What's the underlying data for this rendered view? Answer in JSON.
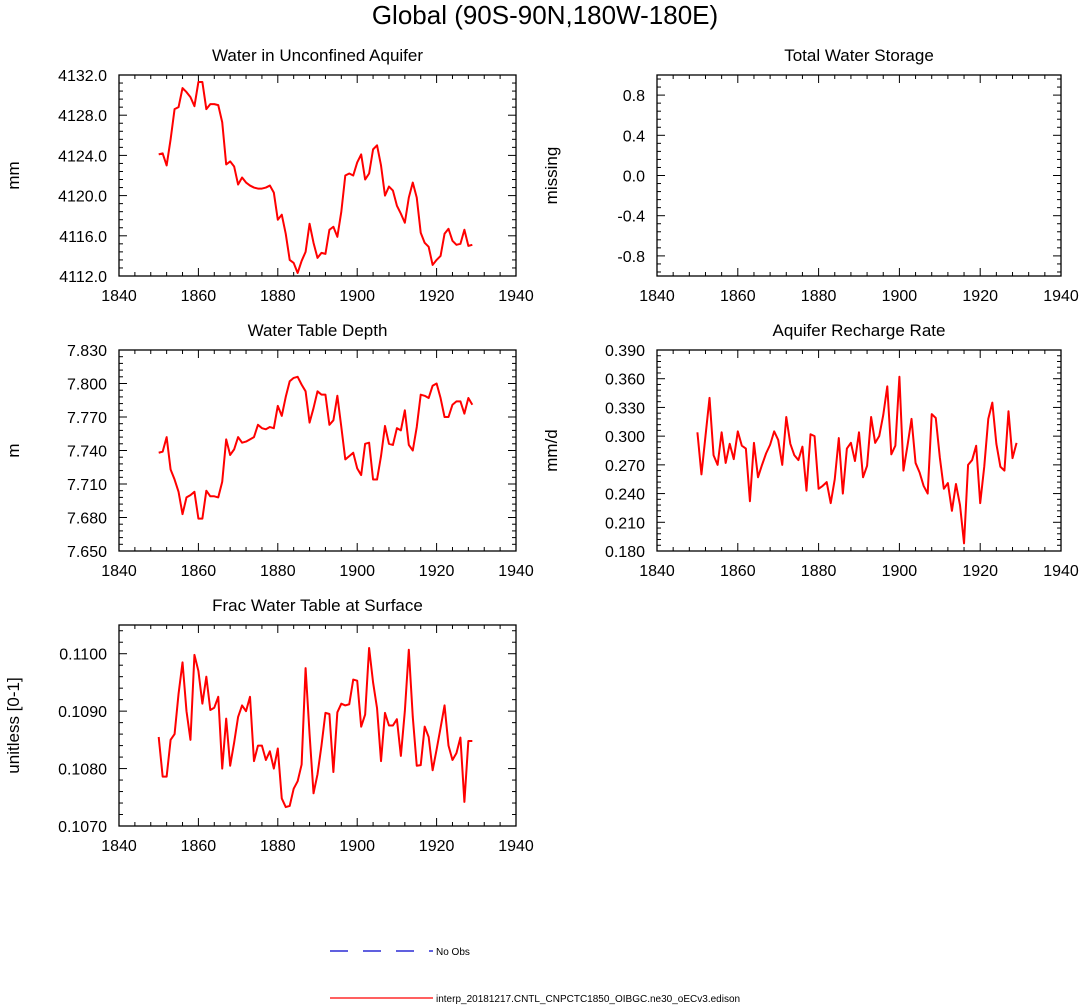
{
  "figure": {
    "title": "Global (90S-90N,180W-180E)"
  },
  "legend": [
    {
      "label": "No Obs",
      "color": "#0000cc",
      "style": "dashed"
    },
    {
      "label": "interp_20181217.CNTL_CNPCTC1850_OIBGC.ne30_oECv3.edison",
      "color": "#ff0000",
      "style": "solid"
    }
  ],
  "chart_data": [
    {
      "type": "line",
      "title": "Water in Unconfined Aquifer",
      "xlabel": "",
      "ylabel": "mm",
      "xlim": [
        1840,
        1940
      ],
      "ylim": [
        4112.0,
        4132.0
      ],
      "xticks": [
        "1840",
        "1860",
        "1880",
        "1900",
        "1920",
        "1940"
      ],
      "yticks": [
        "4112.0",
        "4116.0",
        "4120.0",
        "4124.0",
        "4128.0",
        "4132.0"
      ],
      "series": [
        {
          "name": "interp_20181217.CNTL_CNPCTC1850_OIBGC.ne30_oECv3.edison",
          "color": "#ff0000",
          "x": [
            1850,
            1851,
            1852,
            1853,
            1854,
            1855,
            1856,
            1857,
            1858,
            1859,
            1860,
            1861,
            1862,
            1863,
            1864,
            1865,
            1866,
            1867,
            1868,
            1869,
            1870,
            1871,
            1872,
            1873,
            1874,
            1875,
            1876,
            1877,
            1878,
            1879,
            1880,
            1881,
            1882,
            1883,
            1884,
            1885,
            1886,
            1887,
            1888,
            1889,
            1890,
            1891,
            1892,
            1893,
            1894,
            1895,
            1896,
            1897,
            1898,
            1899,
            1900,
            1901,
            1902,
            1903,
            1904,
            1905,
            1906,
            1907,
            1908,
            1909,
            1910,
            1911,
            1912,
            1913,
            1914,
            1915,
            1916,
            1917,
            1918,
            1919,
            1920,
            1921,
            1922,
            1923,
            1924,
            1925,
            1926,
            1927,
            1928,
            1929
          ],
          "y": [
            4124.1,
            4124.2,
            4123.0,
            4125.6,
            4128.6,
            4128.8,
            4130.7,
            4130.3,
            4129.8,
            4128.9,
            4131.3,
            4131.3,
            4128.6,
            4129.1,
            4129.1,
            4129.0,
            4127.3,
            4123.1,
            4123.4,
            4122.9,
            4121.1,
            4121.8,
            4121.3,
            4121.0,
            4120.8,
            4120.7,
            4120.7,
            4120.8,
            4121.0,
            4120.3,
            4117.6,
            4118.1,
            4116.2,
            4113.6,
            4113.3,
            4112.3,
            4113.5,
            4114.4,
            4117.2,
            4115.3,
            4113.8,
            4114.3,
            4114.2,
            4116.6,
            4116.9,
            4115.9,
            4118.4,
            4122.0,
            4122.2,
            4122.0,
            4123.3,
            4124.1,
            4121.6,
            4122.2,
            4124.6,
            4125.0,
            4123.0,
            4120.0,
            4120.9,
            4120.5,
            4119.0,
            4118.2,
            4117.3,
            4119.8,
            4121.3,
            4119.8,
            4116.3,
            4115.3,
            4114.9,
            4113.1,
            4113.6,
            4114.0,
            4116.2,
            4116.7,
            4115.5,
            4115.1,
            4115.2,
            4116.6,
            4115.0,
            4115.1
          ]
        }
      ]
    },
    {
      "type": "line",
      "title": "Total Water Storage",
      "xlabel": "",
      "ylabel": "missing",
      "xlim": [
        1840,
        1940
      ],
      "ylim": [
        -1.0,
        1.0
      ],
      "xticks": [
        "1840",
        "1860",
        "1880",
        "1900",
        "1920",
        "1940"
      ],
      "yticks": [
        "-0.8",
        "-0.4",
        "0.0",
        "0.4",
        "0.8"
      ],
      "series": []
    },
    {
      "type": "line",
      "title": "Water Table Depth",
      "xlabel": "",
      "ylabel": "m",
      "xlim": [
        1840,
        1940
      ],
      "ylim": [
        7.65,
        7.83
      ],
      "xticks": [
        "1840",
        "1860",
        "1880",
        "1900",
        "1920",
        "1940"
      ],
      "yticks": [
        "7.650",
        "7.680",
        "7.710",
        "7.740",
        "7.770",
        "7.800",
        "7.830"
      ],
      "series": [
        {
          "name": "interp_20181217.CNTL_CNPCTC1850_OIBGC.ne30_oECv3.edison",
          "color": "#ff0000",
          "x": [
            1850,
            1851,
            1852,
            1853,
            1854,
            1855,
            1856,
            1857,
            1858,
            1859,
            1860,
            1861,
            1862,
            1863,
            1864,
            1865,
            1866,
            1867,
            1868,
            1869,
            1870,
            1871,
            1872,
            1873,
            1874,
            1875,
            1876,
            1877,
            1878,
            1879,
            1880,
            1881,
            1882,
            1883,
            1884,
            1885,
            1886,
            1887,
            1888,
            1889,
            1890,
            1891,
            1892,
            1893,
            1894,
            1895,
            1896,
            1897,
            1898,
            1899,
            1900,
            1901,
            1902,
            1903,
            1904,
            1905,
            1906,
            1907,
            1908,
            1909,
            1910,
            1911,
            1912,
            1913,
            1914,
            1915,
            1916,
            1917,
            1918,
            1919,
            1920,
            1921,
            1922,
            1923,
            1924,
            1925,
            1926,
            1927,
            1928,
            1929
          ],
          "y": [
            7.738,
            7.739,
            7.752,
            7.723,
            7.714,
            7.703,
            7.683,
            7.698,
            7.7,
            7.703,
            7.679,
            7.679,
            7.704,
            7.699,
            7.699,
            7.698,
            7.712,
            7.75,
            7.736,
            7.741,
            7.752,
            7.747,
            7.748,
            7.75,
            7.752,
            7.763,
            7.76,
            7.759,
            7.761,
            7.76,
            7.78,
            7.771,
            7.788,
            7.802,
            7.805,
            7.806,
            7.799,
            7.793,
            7.765,
            7.778,
            7.793,
            7.79,
            7.79,
            7.763,
            7.767,
            7.789,
            7.761,
            7.732,
            7.735,
            7.738,
            7.724,
            7.718,
            7.746,
            7.747,
            7.714,
            7.714,
            7.735,
            7.762,
            7.746,
            7.745,
            7.76,
            7.758,
            7.776,
            7.745,
            7.74,
            7.761,
            7.79,
            7.789,
            7.787,
            7.798,
            7.8,
            7.787,
            7.77,
            7.77,
            7.781,
            7.784,
            7.784,
            7.773,
            7.787,
            7.781
          ]
        }
      ]
    },
    {
      "type": "line",
      "title": "Aquifer Recharge Rate",
      "xlabel": "",
      "ylabel": "mm/d",
      "xlim": [
        1840,
        1940
      ],
      "ylim": [
        0.18,
        0.39
      ],
      "xticks": [
        "1840",
        "1860",
        "1880",
        "1900",
        "1920",
        "1940"
      ],
      "yticks": [
        "0.180",
        "0.210",
        "0.240",
        "0.270",
        "0.300",
        "0.330",
        "0.360",
        "0.390"
      ],
      "series": [
        {
          "name": "interp_20181217.CNTL_CNPCTC1850_OIBGC.ne30_oECv3.edison",
          "color": "#ff0000",
          "x": [
            1850,
            1851,
            1852,
            1853,
            1854,
            1855,
            1856,
            1857,
            1858,
            1859,
            1860,
            1861,
            1862,
            1863,
            1864,
            1865,
            1866,
            1867,
            1868,
            1869,
            1870,
            1871,
            1872,
            1873,
            1874,
            1875,
            1876,
            1877,
            1878,
            1879,
            1880,
            1881,
            1882,
            1883,
            1884,
            1885,
            1886,
            1887,
            1888,
            1889,
            1890,
            1891,
            1892,
            1893,
            1894,
            1895,
            1896,
            1897,
            1898,
            1899,
            1900,
            1901,
            1902,
            1903,
            1904,
            1905,
            1906,
            1907,
            1908,
            1909,
            1910,
            1911,
            1912,
            1913,
            1914,
            1915,
            1916,
            1917,
            1918,
            1919,
            1920,
            1921,
            1922,
            1923,
            1924,
            1925,
            1926,
            1927,
            1928,
            1929
          ],
          "y": [
            0.304,
            0.26,
            0.3,
            0.34,
            0.28,
            0.27,
            0.304,
            0.272,
            0.292,
            0.276,
            0.305,
            0.29,
            0.287,
            0.232,
            0.293,
            0.257,
            0.27,
            0.282,
            0.291,
            0.305,
            0.296,
            0.27,
            0.32,
            0.292,
            0.28,
            0.275,
            0.289,
            0.243,
            0.302,
            0.3,
            0.245,
            0.248,
            0.252,
            0.23,
            0.255,
            0.298,
            0.24,
            0.287,
            0.293,
            0.274,
            0.304,
            0.257,
            0.269,
            0.32,
            0.293,
            0.3,
            0.322,
            0.352,
            0.281,
            0.29,
            0.362,
            0.264,
            0.29,
            0.318,
            0.272,
            0.262,
            0.248,
            0.24,
            0.323,
            0.319,
            0.278,
            0.245,
            0.251,
            0.222,
            0.25,
            0.228,
            0.188,
            0.27,
            0.275,
            0.29,
            0.23,
            0.268,
            0.318,
            0.335,
            0.292,
            0.268,
            0.264,
            0.326,
            0.277,
            0.293
          ]
        }
      ]
    },
    {
      "type": "line",
      "title": "Frac Water Table at Surface",
      "xlabel": "",
      "ylabel": "unitless [0-1]",
      "xlim": [
        1840,
        1940
      ],
      "ylim": [
        0.107,
        0.1105
      ],
      "xticks": [
        "1840",
        "1860",
        "1880",
        "1900",
        "1920",
        "1940"
      ],
      "yticks": [
        "0.1070",
        "0.1080",
        "0.1090",
        "0.1100"
      ],
      "series": [
        {
          "name": "interp_20181217.CNTL_CNPCTC1850_OIBGC.ne30_oECv3.edison",
          "color": "#ff0000",
          "x": [
            1850,
            1851,
            1852,
            1853,
            1854,
            1855,
            1856,
            1857,
            1858,
            1859,
            1860,
            1861,
            1862,
            1863,
            1864,
            1865,
            1866,
            1867,
            1868,
            1869,
            1870,
            1871,
            1872,
            1873,
            1874,
            1875,
            1876,
            1877,
            1878,
            1879,
            1880,
            1881,
            1882,
            1883,
            1884,
            1885,
            1886,
            1887,
            1888,
            1889,
            1890,
            1891,
            1892,
            1893,
            1894,
            1895,
            1896,
            1897,
            1898,
            1899,
            1900,
            1901,
            1902,
            1903,
            1904,
            1905,
            1906,
            1907,
            1908,
            1909,
            1910,
            1911,
            1912,
            1913,
            1914,
            1915,
            1916,
            1917,
            1918,
            1919,
            1920,
            1921,
            1922,
            1923,
            1924,
            1925,
            1926,
            1927,
            1928,
            1929
          ],
          "y": [
            0.10855,
            0.10786,
            0.10786,
            0.1085,
            0.1086,
            0.1093,
            0.10985,
            0.109,
            0.1085,
            0.10998,
            0.1097,
            0.10913,
            0.1096,
            0.10902,
            0.10906,
            0.10925,
            0.108,
            0.10887,
            0.10805,
            0.10845,
            0.1089,
            0.1091,
            0.109,
            0.10925,
            0.10813,
            0.1084,
            0.1084,
            0.10815,
            0.1083,
            0.108,
            0.10835,
            0.10748,
            0.10733,
            0.10735,
            0.10765,
            0.10778,
            0.10807,
            0.10975,
            0.1086,
            0.10757,
            0.1079,
            0.1084,
            0.10897,
            0.10895,
            0.10794,
            0.10898,
            0.10913,
            0.1091,
            0.10912,
            0.10955,
            0.10953,
            0.10873,
            0.10894,
            0.1101,
            0.1095,
            0.10905,
            0.10813,
            0.10897,
            0.10875,
            0.10875,
            0.10886,
            0.10822,
            0.109,
            0.11007,
            0.1089,
            0.10805,
            0.10806,
            0.10873,
            0.10855,
            0.10797,
            0.10833,
            0.10871,
            0.1091,
            0.1084,
            0.10815,
            0.10827,
            0.10854,
            0.10742,
            0.10848,
            0.10848
          ]
        }
      ]
    }
  ]
}
